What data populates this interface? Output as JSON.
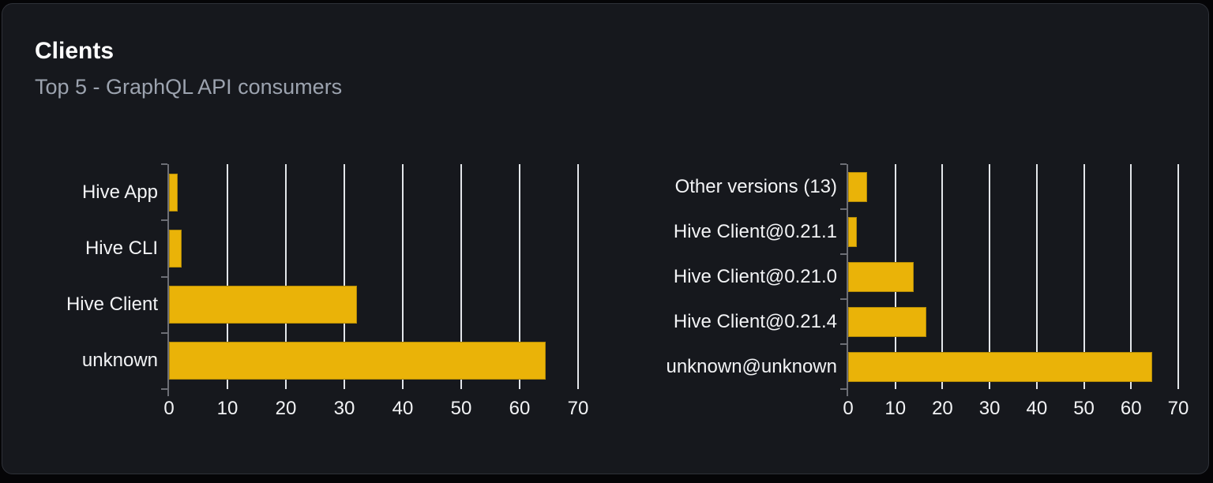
{
  "card": {
    "title": "Clients",
    "subtitle": "Top 5 - GraphQL API consumers"
  },
  "chart_data": [
    {
      "type": "bar",
      "orientation": "horizontal",
      "name": "clients-by-name",
      "categories": [
        "Hive App",
        "Hive CLI",
        "Hive Client",
        "unknown"
      ],
      "values": [
        1.5,
        2.1,
        32.1,
        64.4
      ],
      "xlim": [
        0,
        70
      ],
      "xticks": [
        0,
        10,
        20,
        30,
        40,
        50,
        60,
        70
      ],
      "grid": true,
      "legend": "none",
      "xlabel": "",
      "ylabel": ""
    },
    {
      "type": "bar",
      "orientation": "horizontal",
      "name": "clients-by-version",
      "categories": [
        "Other versions (13)",
        "Hive Client@0.21.1",
        "Hive Client@0.21.0",
        "Hive Client@0.21.4",
        "unknown@unknown"
      ],
      "values": [
        4.0,
        1.9,
        13.9,
        16.5,
        64.5
      ],
      "xlim": [
        0,
        70
      ],
      "xticks": [
        0,
        10,
        20,
        30,
        40,
        50,
        60,
        70
      ],
      "grid": true,
      "legend": "none",
      "xlabel": "",
      "ylabel": ""
    }
  ],
  "colors": {
    "bar": "#eab308",
    "bar_edge": "#b28a06",
    "grid": "#e3e6ea",
    "axis": "#6c6e75",
    "card_bg": "#16181d",
    "card_border": "#2e3138",
    "page_bg": "#050507",
    "title": "#ffffff",
    "subtitle": "#9ca3af",
    "label": "#f2f3f5"
  }
}
